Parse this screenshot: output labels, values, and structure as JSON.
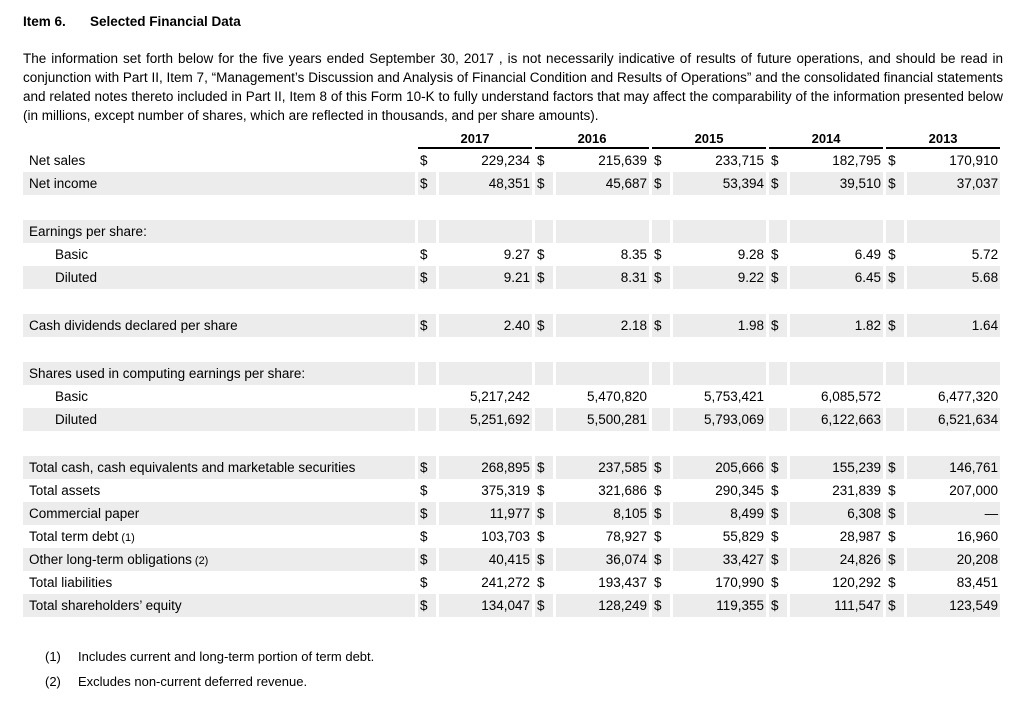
{
  "heading": {
    "item_label": "Item 6.",
    "title": "Selected Financial Data"
  },
  "intro": "The information set forth below for the five years ended September 30, 2017 , is not necessarily indicative of results of future operations, and should be read in conjunction with Part II, Item 7, “Management’s Discussion and Analysis of Financial Condition and Results of Operations” and the consolidated financial statements and related notes thereto included in Part II, Item 8 of this Form 10-K to fully understand factors that may affect the comparability of the information presented below (in millions, except number of shares, which are reflected in thousands, and per share amounts).",
  "table": {
    "currency_symbol": "$",
    "years": [
      "2017",
      "2016",
      "2015",
      "2014",
      "2013"
    ],
    "rows": [
      {
        "kind": "data",
        "label": "Net sales",
        "shaded": false,
        "indent": 0,
        "dollar": true,
        "values": [
          "229,234",
          "215,639",
          "233,715",
          "182,795",
          "170,910"
        ]
      },
      {
        "kind": "data",
        "label": "Net income",
        "shaded": true,
        "indent": 0,
        "dollar": true,
        "values": [
          "48,351",
          "45,687",
          "53,394",
          "39,510",
          "37,037"
        ]
      },
      {
        "kind": "spacer"
      },
      {
        "kind": "section",
        "label": "Earnings per share:",
        "shaded": true
      },
      {
        "kind": "data",
        "label": "Basic",
        "shaded": false,
        "indent": 1,
        "dollar": true,
        "values": [
          "9.27",
          "8.35",
          "9.28",
          "6.49",
          "5.72"
        ]
      },
      {
        "kind": "data",
        "label": "Diluted",
        "shaded": true,
        "indent": 1,
        "dollar": true,
        "values": [
          "9.21",
          "8.31",
          "9.22",
          "6.45",
          "5.68"
        ]
      },
      {
        "kind": "spacer"
      },
      {
        "kind": "data",
        "label": "Cash dividends declared per share",
        "shaded": true,
        "indent": 0,
        "dollar": true,
        "values": [
          "2.40",
          "2.18",
          "1.98",
          "1.82",
          "1.64"
        ]
      },
      {
        "kind": "spacer"
      },
      {
        "kind": "section",
        "label": "Shares used in computing earnings per share:",
        "shaded": true
      },
      {
        "kind": "data",
        "label": "Basic",
        "shaded": false,
        "indent": 1,
        "dollar": false,
        "values": [
          "5,217,242",
          "5,470,820",
          "5,753,421",
          "6,085,572",
          "6,477,320"
        ]
      },
      {
        "kind": "data",
        "label": "Diluted",
        "shaded": true,
        "indent": 1,
        "dollar": false,
        "values": [
          "5,251,692",
          "5,500,281",
          "5,793,069",
          "6,122,663",
          "6,521,634"
        ]
      },
      {
        "kind": "spacer"
      },
      {
        "kind": "data",
        "label": "Total cash, cash equivalents and marketable securities",
        "shaded": true,
        "indent": 0,
        "dollar": true,
        "values": [
          "268,895",
          "237,585",
          "205,666",
          "155,239",
          "146,761"
        ]
      },
      {
        "kind": "data",
        "label": "Total assets",
        "shaded": false,
        "indent": 0,
        "dollar": true,
        "values": [
          "375,319",
          "321,686",
          "290,345",
          "231,839",
          "207,000"
        ]
      },
      {
        "kind": "data",
        "label": "Commercial paper",
        "shaded": true,
        "indent": 0,
        "dollar": true,
        "values": [
          "11,977",
          "8,105",
          "8,499",
          "6,308",
          "—"
        ]
      },
      {
        "kind": "data",
        "label": "Total term debt",
        "note": "(1)",
        "shaded": false,
        "indent": 0,
        "dollar": true,
        "values": [
          "103,703",
          "78,927",
          "55,829",
          "28,987",
          "16,960"
        ]
      },
      {
        "kind": "data",
        "label": "Other long-term obligations",
        "note": "(2)",
        "shaded": true,
        "indent": 0,
        "dollar": true,
        "values": [
          "40,415",
          "36,074",
          "33,427",
          "24,826",
          "20,208"
        ]
      },
      {
        "kind": "data",
        "label": "Total liabilities",
        "shaded": false,
        "indent": 0,
        "dollar": true,
        "values": [
          "241,272",
          "193,437",
          "170,990",
          "120,292",
          "83,451"
        ]
      },
      {
        "kind": "data",
        "label": "Total shareholders’ equity",
        "shaded": true,
        "indent": 0,
        "dollar": true,
        "values": [
          "134,047",
          "128,249",
          "119,355",
          "111,547",
          "123,549"
        ]
      }
    ]
  },
  "footnotes": [
    {
      "marker": "(1)",
      "text": "Includes current and long-term portion of term debt."
    },
    {
      "marker": "(2)",
      "text": "Excludes non-current deferred revenue."
    }
  ],
  "colors": {
    "row_shade": "#ececec",
    "header_rule": "#000000",
    "artifact_bar": "#f5f5f5"
  }
}
